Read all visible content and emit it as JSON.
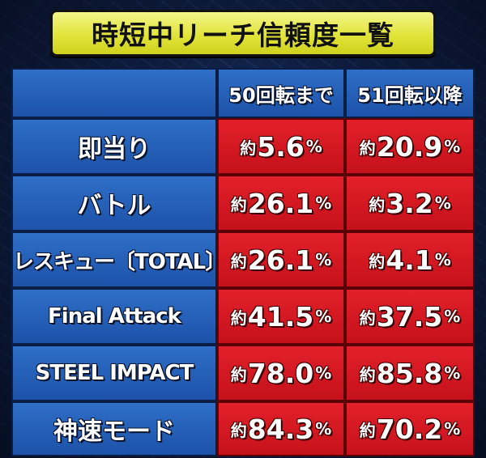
{
  "title": "時短中リーチ信頼度一覧",
  "headers": [
    "",
    "50回転まで",
    "51回転以降"
  ],
  "prefix": "約",
  "unit": "%",
  "rows": [
    {
      "label": "即当り",
      "v1": "5.6",
      "v2": "20.9"
    },
    {
      "label": "バトル",
      "v1": "26.1",
      "v2": "3.2"
    },
    {
      "label": "レスキュー〔TOTAL〕",
      "v1": "26.1",
      "v2": "4.1"
    },
    {
      "label": "Final Attack",
      "v1": "41.5",
      "v2": "37.5"
    },
    {
      "label": "STEEL IMPACT",
      "v1": "78.0",
      "v2": "85.8"
    },
    {
      "label": "神速モード",
      "v1": "84.3",
      "v2": "70.2"
    }
  ],
  "colors": {
    "title_bg": "#e2e43a",
    "header_blue": "#1d52a8",
    "value_red": "#c5111b"
  }
}
